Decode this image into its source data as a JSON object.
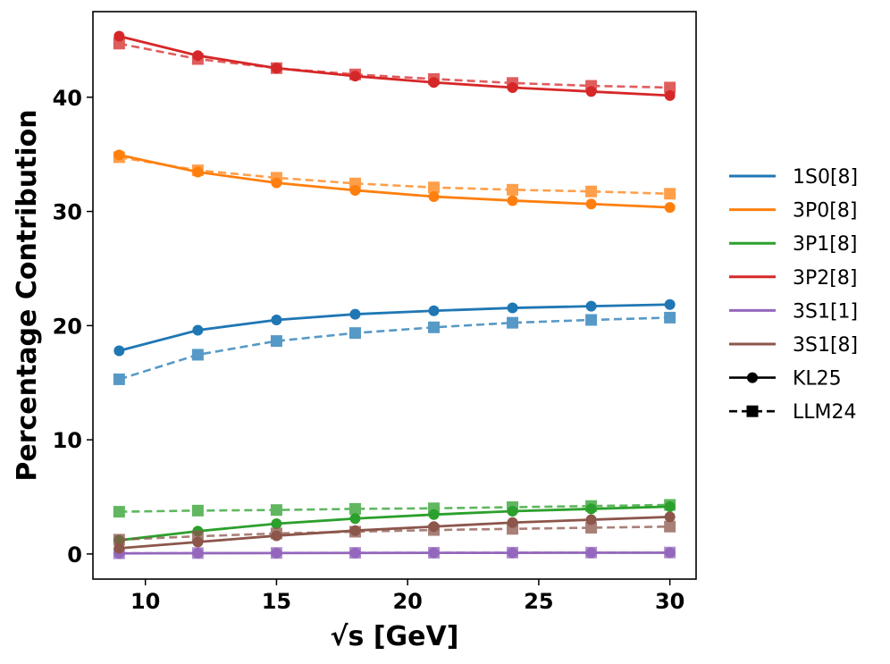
{
  "chart_data": {
    "type": "line",
    "xlabel": "√s [GeV]",
    "ylabel": "Percentage Contribution",
    "xlim": [
      8,
      31
    ],
    "ylim": [
      -2.2,
      47.5
    ],
    "xticks": [
      10,
      15,
      20,
      25,
      30
    ],
    "yticks": [
      0,
      10,
      20,
      30,
      40
    ],
    "grid": false,
    "legend_position": "right-outside",
    "x": [
      9,
      12,
      15,
      18,
      21,
      24,
      27,
      30
    ],
    "series": [
      {
        "name": "1S0[8]",
        "color": "#1f77b4",
        "kl25": [
          17.8,
          19.6,
          20.5,
          21.0,
          21.3,
          21.55,
          21.7,
          21.85
        ],
        "llm24": [
          15.3,
          17.45,
          18.65,
          19.35,
          19.85,
          20.25,
          20.5,
          20.7
        ]
      },
      {
        "name": "3P0[8]",
        "color": "#ff7f0e",
        "kl25": [
          34.95,
          33.45,
          32.5,
          31.85,
          31.3,
          30.95,
          30.65,
          30.35
        ],
        "llm24": [
          34.75,
          33.6,
          32.95,
          32.45,
          32.1,
          31.9,
          31.75,
          31.55
        ]
      },
      {
        "name": "3P1[8]",
        "color": "#2ca02c",
        "kl25": [
          1.2,
          2.0,
          2.65,
          3.1,
          3.45,
          3.75,
          3.95,
          4.15
        ],
        "llm24": [
          3.7,
          3.8,
          3.85,
          3.95,
          4.0,
          4.1,
          4.2,
          4.3
        ]
      },
      {
        "name": "3P2[8]",
        "color": "#d62728",
        "kl25": [
          45.35,
          43.65,
          42.55,
          41.85,
          41.3,
          40.85,
          40.5,
          40.15
        ],
        "llm24": [
          44.7,
          43.35,
          42.55,
          42.0,
          41.6,
          41.25,
          41.0,
          40.85
        ]
      },
      {
        "name": "3S1[1]",
        "color": "#9467bd",
        "kl25": [
          0.05,
          0.07,
          0.08,
          0.09,
          0.1,
          0.1,
          0.11,
          0.11
        ],
        "llm24": [
          0.06,
          0.08,
          0.09,
          0.1,
          0.11,
          0.12,
          0.12,
          0.13
        ]
      },
      {
        "name": "3S1[8]",
        "color": "#8c564b",
        "kl25": [
          0.5,
          1.05,
          1.6,
          2.05,
          2.4,
          2.75,
          3.0,
          3.25
        ],
        "llm24": [
          1.25,
          1.55,
          1.8,
          1.95,
          2.1,
          2.2,
          2.3,
          2.4
        ]
      }
    ],
    "styles": [
      {
        "name": "KL25",
        "line": "solid",
        "marker": "circle"
      },
      {
        "name": "LLM24",
        "line": "dashed",
        "marker": "square"
      }
    ]
  }
}
